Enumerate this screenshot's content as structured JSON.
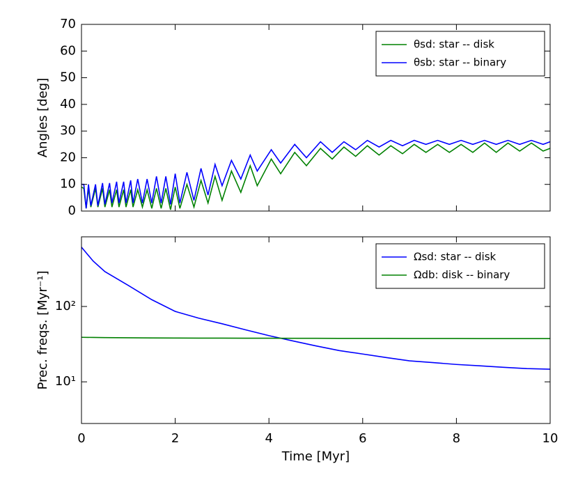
{
  "chart_data": [
    {
      "type": "line",
      "ylabel": "Angles [deg]",
      "x": [
        0,
        0.05,
        0.1,
        0.15,
        0.2,
        0.3,
        0.35,
        0.45,
        0.5,
        0.6,
        0.65,
        0.75,
        0.8,
        0.9,
        0.95,
        1.05,
        1.1,
        1.2,
        1.3,
        1.4,
        1.5,
        1.6,
        1.7,
        1.8,
        1.9,
        2.0,
        2.1,
        2.25,
        2.4,
        2.55,
        2.7,
        2.85,
        3.0,
        3.2,
        3.4,
        3.6,
        3.75,
        4.05,
        4.25,
        4.55,
        4.8,
        5.1,
        5.35,
        5.6,
        5.85,
        6.1,
        6.35,
        6.6,
        6.85,
        7.1,
        7.35,
        7.6,
        7.85,
        8.1,
        8.35,
        8.6,
        8.85,
        9.1,
        9.35,
        9.6,
        9.85,
        10
      ],
      "series": [
        {
          "name": "θsd: star -- disk",
          "color": "#008000",
          "values": [
            9,
            8.5,
            1,
            8.5,
            1.5,
            8.5,
            1.5,
            8.5,
            1.5,
            8,
            1.5,
            8,
            1.5,
            8,
            1.5,
            8,
            1.5,
            8,
            1.5,
            8,
            1,
            8.5,
            1,
            8.5,
            0.5,
            9,
            1,
            10,
            1.5,
            11.5,
            3,
            13,
            4,
            15,
            7,
            17,
            9.5,
            19.5,
            14,
            22,
            17,
            23.5,
            19.5,
            24,
            20.5,
            24.5,
            21,
            24.5,
            21.5,
            25,
            22,
            25,
            22,
            25,
            22,
            25.5,
            22,
            25.5,
            22.5,
            25.5,
            22.5,
            23.5
          ]
        },
        {
          "name": "θsb: star -- binary",
          "color": "#0000ff",
          "values": [
            10,
            10,
            1,
            10,
            2,
            10,
            2,
            10.5,
            2.5,
            10.5,
            3,
            11,
            3,
            11,
            3,
            11.5,
            3,
            12,
            3,
            12,
            3,
            13,
            3,
            13,
            2.5,
            14,
            3,
            14.5,
            4,
            16,
            6,
            17.5,
            9.5,
            19,
            12,
            21,
            15,
            23,
            18,
            25,
            20,
            26,
            22,
            26,
            23,
            26.5,
            24,
            26.5,
            24.5,
            26.5,
            25,
            26.5,
            25,
            26.5,
            25,
            26.5,
            25,
            26.5,
            25,
            26.5,
            25,
            26
          ]
        }
      ],
      "xlim": [
        0,
        10
      ],
      "xticks": [
        0,
        2,
        4,
        6,
        8,
        10
      ],
      "xticklabels": false,
      "ylim": [
        0,
        70
      ],
      "yticks": [
        0,
        10,
        20,
        30,
        40,
        50,
        60,
        70
      ],
      "legend": "upper right"
    },
    {
      "type": "line",
      "ylabel": "Prec. freqs. [Myr⁻¹]",
      "xlabel": "Time [Myr]",
      "x": [
        0,
        0.25,
        0.5,
        1,
        1.5,
        2,
        2.5,
        3,
        3.5,
        4,
        4.5,
        5,
        5.5,
        6,
        6.5,
        7,
        7.5,
        8,
        8.5,
        9,
        9.5,
        10
      ],
      "series": [
        {
          "name": "Ωsd: star -- disk",
          "color": "#0000ff",
          "values": [
            612,
            400,
            290,
            190,
            123,
            86,
            70,
            59,
            49,
            41,
            35,
            30,
            26,
            23.4,
            21,
            19,
            18,
            17,
            16.3,
            15.6,
            15,
            14.7
          ]
        },
        {
          "name": "Ωdb: disk -- binary",
          "color": "#008000",
          "values": [
            39,
            38.8,
            38.6,
            38.4,
            38.2,
            38.1,
            38,
            38,
            37.9,
            37.9,
            37.8,
            37.8,
            37.7,
            37.7,
            37.7,
            37.6,
            37.6,
            37.6,
            37.5,
            37.5,
            37.5,
            37.5
          ]
        }
      ],
      "xlim": [
        0,
        10
      ],
      "xticks": [
        0,
        2,
        4,
        6,
        8,
        10
      ],
      "xticklabels": true,
      "ylim": [
        2.8,
        840
      ],
      "yscale": "log",
      "yticks": [
        {
          "value": 10,
          "label": "10¹"
        },
        {
          "value": 100,
          "label": "10²"
        }
      ],
      "legend": "upper right"
    }
  ]
}
